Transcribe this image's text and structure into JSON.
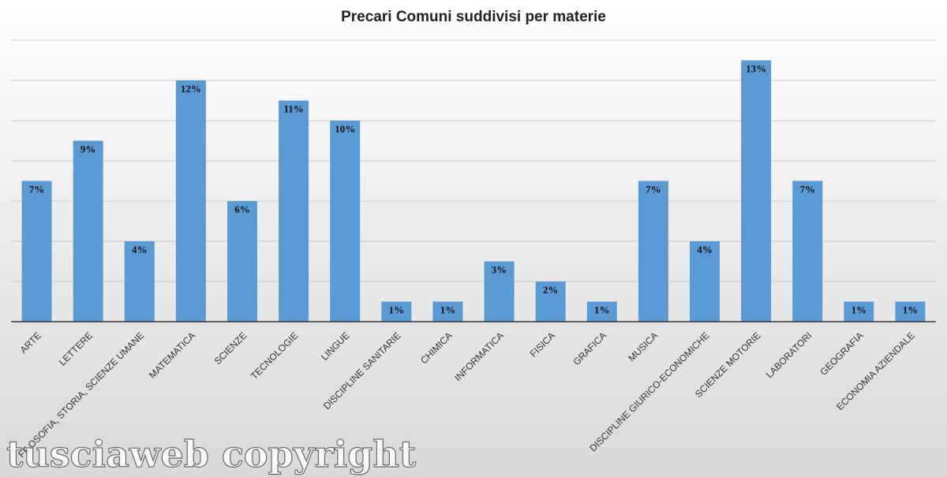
{
  "chart_data": {
    "type": "bar",
    "title": "Precari Comuni suddivisi per materie",
    "categories": [
      "ARTE",
      "LETTERE",
      "FILOSOFIA, STORIA, SCIENZE UMANE",
      "MATEMATICA",
      "SCIENZE",
      "TECNOLOGIE",
      "LINGUE",
      "DISCIPLINE SANITARIE",
      "CHIMICA",
      "INFORMATICA",
      "FISICA",
      "GRAFICA",
      "MUSICA",
      "DISCIPLINE GIURICO-ECONOMICHE",
      "SCIENZE MOTORIE",
      "LABORATORI",
      "GEOGRAFIA",
      "ECONOMIA AZIENDALE"
    ],
    "values": [
      7,
      9,
      4,
      12,
      6,
      11,
      10,
      1,
      1,
      3,
      2,
      1,
      7,
      4,
      13,
      7,
      1,
      1
    ],
    "value_labels": [
      "7%",
      "9%",
      "4%",
      "12%",
      "6%",
      "11%",
      "10%",
      "1%",
      "1%",
      "3%",
      "2%",
      "1%",
      "7%",
      "4%",
      "13%",
      "7%",
      "1%",
      "1%"
    ],
    "color": "#5b9bd5",
    "ylim": [
      0,
      14
    ],
    "yticks": [
      0,
      2,
      4,
      6,
      8,
      10,
      12,
      14
    ],
    "show_ytick_labels": false,
    "grid": true
  },
  "watermark": "tusciaweb copyright"
}
